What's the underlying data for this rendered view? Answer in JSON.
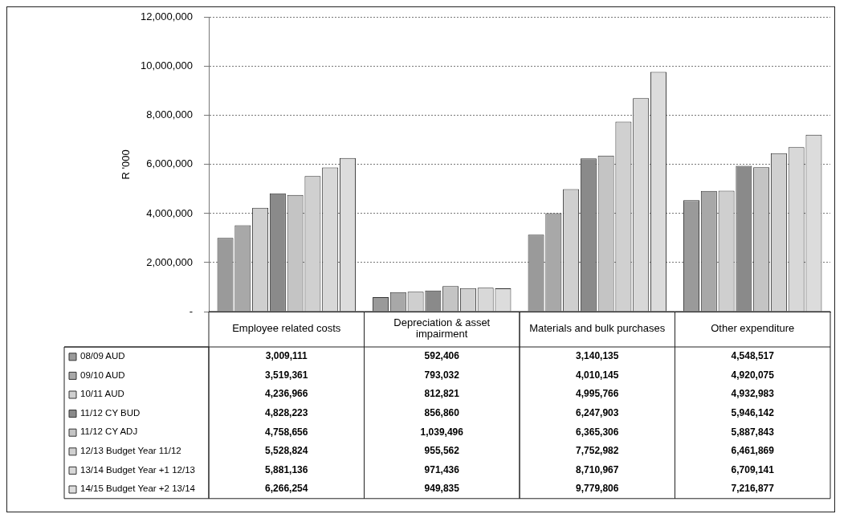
{
  "chart_data": {
    "type": "bar",
    "ylabel": "R '000",
    "categories": [
      "Employee related costs",
      "Depreciation & asset impairment",
      "Materials and bulk purchases",
      "Other expenditure"
    ],
    "series": [
      {
        "name": "08/09 AUD",
        "color": "#9a9a9a",
        "values": [
          3009111,
          592406,
          3140135,
          4548517
        ],
        "value_labels": [
          "3,009,111",
          "592,406",
          "3,140,135",
          "4,548,517"
        ]
      },
      {
        "name": "09/10 AUD",
        "color": "#a8a8a8",
        "values": [
          3519361,
          793032,
          4010145,
          4920075
        ],
        "value_labels": [
          "3,519,361",
          "793,032",
          "4,010,145",
          "4,920,075"
        ]
      },
      {
        "name": "10/11 AUD",
        "color": "#cfcfcf",
        "values": [
          4236966,
          812821,
          4995766,
          4932983
        ],
        "value_labels": [
          "4,236,966",
          "812,821",
          "4,995,766",
          "4,932,983"
        ]
      },
      {
        "name": "11/12 CY BUD",
        "color": "#8a8a8a",
        "values": [
          4828223,
          856860,
          6247903,
          5946142
        ],
        "value_labels": [
          "4,828,223",
          "856,860",
          "6,247,903",
          "5,946,142"
        ]
      },
      {
        "name": "11/12 CY ADJ",
        "color": "#c4c4c4",
        "values": [
          4758656,
          1039496,
          6365306,
          5887843
        ],
        "value_labels": [
          "4,758,656",
          "1,039,496",
          "6,365,306",
          "5,887,843"
        ]
      },
      {
        "name": "12/13 Budget Year 11/12",
        "color": "#d0d0d0",
        "values": [
          5528824,
          955562,
          7752982,
          6461869
        ],
        "value_labels": [
          "5,528,824",
          "955,562",
          "7,752,982",
          "6,461,869"
        ]
      },
      {
        "name": "13/14 Budget Year +1 12/13",
        "color": "#d8d8d8",
        "values": [
          5881136,
          971436,
          8710967,
          6709141
        ],
        "value_labels": [
          "5,881,136",
          "971,436",
          "8,710,967",
          "6,709,141"
        ]
      },
      {
        "name": "14/15 Budget Year +2 13/14",
        "color": "#dcdcdc",
        "values": [
          6266254,
          949835,
          9779806,
          7216877
        ],
        "value_labels": [
          "6,266,254",
          "949,835",
          "9,779,806",
          "7,216,877"
        ]
      }
    ],
    "ylim": [
      0,
      12000000
    ],
    "yticks": [
      {
        "value": 0,
        "label": "-"
      },
      {
        "value": 2000000,
        "label": "2,000,000"
      },
      {
        "value": 4000000,
        "label": "4,000,000"
      },
      {
        "value": 6000000,
        "label": "6,000,000"
      },
      {
        "value": 8000000,
        "label": "8,000,000"
      },
      {
        "value": 10000000,
        "label": "10,000,000"
      },
      {
        "value": 12000000,
        "label": "12,000,000"
      }
    ],
    "grid": "y",
    "legend": "bottom"
  }
}
